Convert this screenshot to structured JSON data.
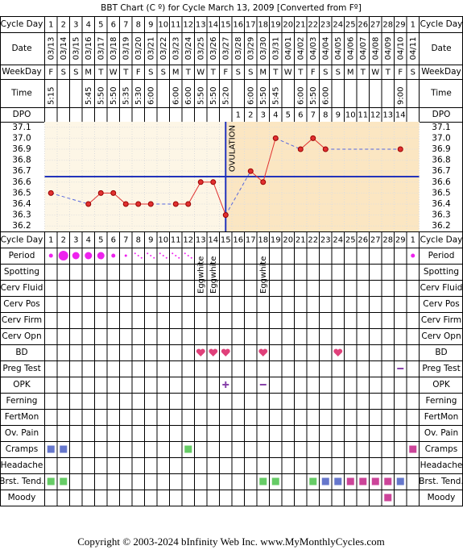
{
  "title": "BBT Chart (C º) for Cycle March 13, 2009  [Converted from Fº]",
  "footer": "Copyright © 2003-2024 bInfinity Web Inc.    www.MyMonthlyCycles.com",
  "row_labels": {
    "cycle_day": "Cycle Day",
    "date": "Date",
    "weekday": "WeekDay",
    "time": "Time",
    "dpo": "DPO"
  },
  "cycle_days": [
    1,
    2,
    3,
    4,
    5,
    6,
    7,
    8,
    9,
    10,
    11,
    12,
    13,
    14,
    15,
    16,
    17,
    18,
    19,
    20,
    21,
    22,
    23,
    24,
    25,
    26,
    27,
    28,
    29,
    1
  ],
  "dates": [
    "03/13",
    "03/14",
    "03/15",
    "03/16",
    "03/17",
    "03/18",
    "03/19",
    "03/20",
    "03/21",
    "03/22",
    "03/23",
    "03/24",
    "03/25",
    "03/26",
    "03/27",
    "03/28",
    "03/29",
    "03/30",
    "03/31",
    "04/01",
    "04/02",
    "04/03",
    "04/04",
    "04/05",
    "04/06",
    "04/07",
    "04/08",
    "04/09",
    "04/10",
    "04/11"
  ],
  "weekdays": [
    "F",
    "S",
    "S",
    "M",
    "T",
    "W",
    "T",
    "F",
    "S",
    "S",
    "M",
    "T",
    "W",
    "T",
    "F",
    "S",
    "S",
    "M",
    "T",
    "W",
    "T",
    "F",
    "S",
    "S",
    "M",
    "T",
    "W",
    "T",
    "F",
    "S"
  ],
  "times": [
    "5:15",
    null,
    null,
    "5:45",
    "5:50",
    "5:50",
    "5:35",
    "5:30",
    "6:00",
    null,
    "6:00",
    "6:00",
    "5:50",
    "5:50",
    "5:20",
    null,
    "6:00",
    "5:50",
    "5:45",
    null,
    "6:00",
    "5:50",
    "6:00",
    null,
    null,
    null,
    null,
    null,
    "9:00",
    null
  ],
  "dpo": [
    null,
    null,
    null,
    null,
    null,
    null,
    null,
    null,
    null,
    null,
    null,
    null,
    null,
    null,
    null,
    1,
    2,
    3,
    4,
    5,
    6,
    7,
    8,
    9,
    10,
    11,
    12,
    13,
    14,
    null
  ],
  "chart_data": {
    "type": "line",
    "ylim": [
      36.15,
      37.15
    ],
    "yticks": [
      37.1,
      {
        "value": 37,
        "label": "37.0"
      },
      36.9,
      36.8,
      36.7,
      36.6,
      36.5,
      36.4,
      36.3,
      36.2
    ],
    "values": [
      36.5,
      null,
      null,
      36.4,
      36.5,
      36.5,
      36.4,
      36.4,
      36.4,
      null,
      36.4,
      36.4,
      36.6,
      36.6,
      36.3,
      null,
      36.7,
      36.6,
      37.0,
      null,
      36.9,
      37.0,
      36.9,
      null,
      null,
      null,
      null,
      null,
      36.9,
      null
    ],
    "color": "#e03030",
    "gap_color": "#5566dd",
    "coverline": 36.65,
    "coverline_color": "#2233bb",
    "ovulation_label": "OVULATION"
  },
  "lower_rows": [
    {
      "label": "Period",
      "marks": [
        "dot-s",
        "dot-l",
        "dot-m",
        "dot-m",
        "dot-m",
        "dot-s",
        "dot-t",
        "spot",
        "spot",
        "spot",
        "spot",
        "spot",
        null,
        null,
        null,
        null,
        null,
        null,
        null,
        null,
        null,
        null,
        null,
        null,
        null,
        null,
        null,
        null,
        null,
        "dot-s"
      ]
    },
    {
      "label": "Spotting",
      "marks": []
    },
    {
      "label": "Cerv Fluid",
      "marks": [
        null,
        null,
        null,
        null,
        null,
        null,
        null,
        null,
        null,
        null,
        null,
        null,
        "Eggwhite",
        "Eggwhite",
        null,
        null,
        null,
        "Eggwhite"
      ]
    },
    {
      "label": "Cerv Pos",
      "marks": []
    },
    {
      "label": "Cerv Firm",
      "marks": []
    },
    {
      "label": "Cerv Opn",
      "marks": []
    },
    {
      "label": "BD",
      "marks": [
        null,
        null,
        null,
        null,
        null,
        null,
        null,
        null,
        null,
        null,
        null,
        null,
        "heart",
        "heart",
        "heart",
        null,
        null,
        "heart",
        null,
        null,
        null,
        null,
        null,
        "heart"
      ]
    },
    {
      "label": "Preg Test",
      "marks": [
        null,
        null,
        null,
        null,
        null,
        null,
        null,
        null,
        null,
        null,
        null,
        null,
        null,
        null,
        null,
        null,
        null,
        null,
        null,
        null,
        null,
        null,
        null,
        null,
        null,
        null,
        null,
        null,
        "minus"
      ]
    },
    {
      "label": "OPK",
      "marks": [
        null,
        null,
        null,
        null,
        null,
        null,
        null,
        null,
        null,
        null,
        null,
        null,
        null,
        null,
        "plus",
        null,
        null,
        "minus"
      ]
    },
    {
      "label": "Ferning",
      "marks": []
    },
    {
      "label": "FertMon",
      "marks": []
    },
    {
      "label": "Ov. Pain",
      "marks": []
    },
    {
      "label": "Cramps",
      "marks": [
        "#6677cc",
        "#6677cc",
        null,
        null,
        null,
        null,
        null,
        null,
        null,
        null,
        null,
        "#66cc66",
        null,
        null,
        null,
        null,
        null,
        null,
        null,
        null,
        null,
        null,
        null,
        null,
        null,
        null,
        null,
        null,
        null,
        "#cc4499"
      ]
    },
    {
      "label": "Headache",
      "marks": []
    },
    {
      "label": "Brst. Tend.",
      "marks": [
        "#66cc66",
        "#66cc66",
        null,
        null,
        null,
        null,
        null,
        null,
        null,
        null,
        null,
        null,
        null,
        null,
        null,
        null,
        null,
        "#66cc66",
        "#66cc66",
        null,
        null,
        "#66cc66",
        "#6677cc",
        "#6677cc",
        "#cc4499",
        "#cc4499",
        "#cc4499",
        "#cc4499",
        "#6677cc"
      ]
    },
    {
      "label": "Moody",
      "marks": [
        null,
        null,
        null,
        null,
        null,
        null,
        null,
        null,
        null,
        null,
        null,
        null,
        null,
        null,
        null,
        null,
        null,
        null,
        null,
        null,
        null,
        null,
        null,
        null,
        null,
        null,
        null,
        "#cc4499"
      ]
    }
  ]
}
